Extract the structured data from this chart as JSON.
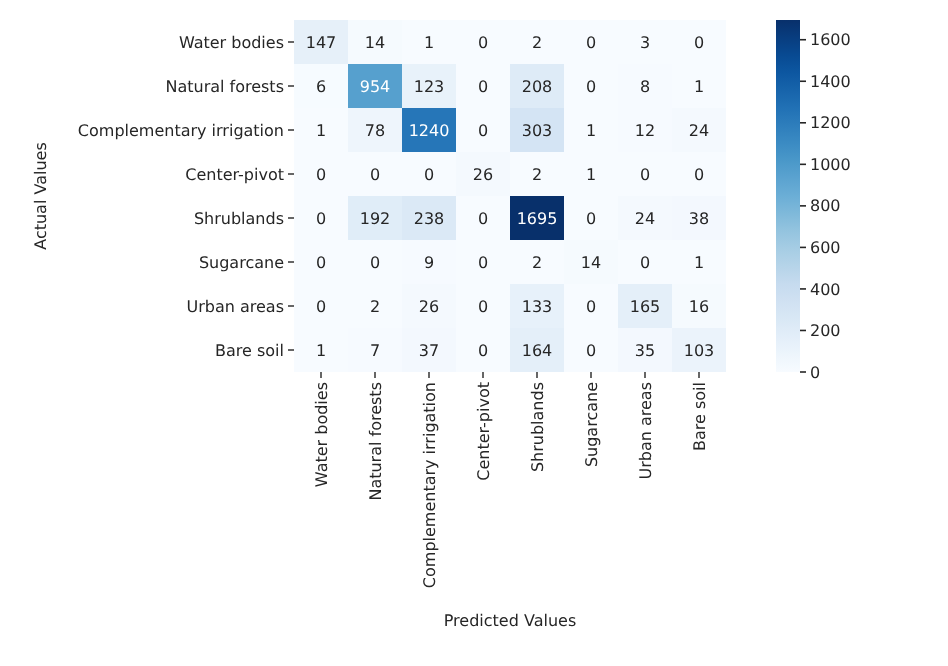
{
  "chart_data": {
    "type": "heatmap",
    "xlabel": "Predicted Values",
    "ylabel": "Actual Values",
    "categories": [
      "Water bodies",
      "Natural forests",
      "Complementary irrigation",
      "Center-pivot",
      "Shrublands",
      "Sugarcane",
      "Urban areas",
      "Bare soil"
    ],
    "y_categories": [
      "Water bodies",
      "Natural forests",
      "Complementary irrigation",
      "Center-pivot",
      "Shrublands",
      "Sugarcane",
      "Urban areas",
      "Bare soil"
    ],
    "cells": [
      [
        147,
        14,
        1,
        0,
        2,
        0,
        3,
        0
      ],
      [
        6,
        954,
        123,
        0,
        208,
        0,
        8,
        1
      ],
      [
        1,
        78,
        1240,
        0,
        303,
        1,
        12,
        24
      ],
      [
        0,
        0,
        0,
        26,
        2,
        1,
        0,
        0
      ],
      [
        0,
        192,
        238,
        0,
        1695,
        0,
        24,
        38
      ],
      [
        0,
        0,
        9,
        0,
        2,
        14,
        0,
        1
      ],
      [
        0,
        2,
        26,
        0,
        133,
        0,
        165,
        16
      ],
      [
        1,
        7,
        37,
        0,
        164,
        0,
        35,
        103
      ]
    ],
    "data_labels": true,
    "clim": [
      0,
      1695
    ],
    "cticks": [
      0,
      200,
      400,
      600,
      800,
      1000,
      1200,
      1400,
      1600
    ]
  }
}
